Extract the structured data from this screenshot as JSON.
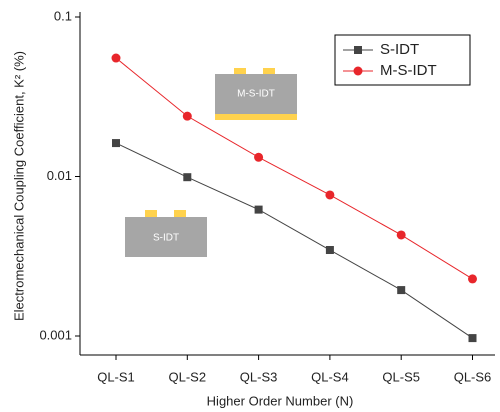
{
  "chart_data": {
    "type": "line",
    "x_label": "Higher Order Number (N)",
    "y_label": "Electromechanical Coupling Coefficient, K² (%)",
    "categories": [
      "QL-S1",
      "QL-S2",
      "QL-S3",
      "QL-S4",
      "QL-S5",
      "QL-S6"
    ],
    "series": [
      {
        "name": "S-IDT",
        "color": "#444444",
        "marker": "square",
        "values": [
          0.0162,
          0.0099,
          0.0062,
          0.00346,
          0.00194,
          0.00097
        ]
      },
      {
        "name": "M-S-IDT",
        "color": "#e8262b",
        "marker": "circle",
        "values": [
          0.0553,
          0.0239,
          0.0132,
          0.00766,
          0.0043,
          0.00228
        ]
      }
    ],
    "ylim": [
      0.00076,
      0.1
    ],
    "yticks": [
      0.001,
      0.01,
      0.1
    ],
    "ylog": true,
    "legend": "top-right",
    "annotations": [
      "M-S-IDT",
      "S-IDT"
    ]
  }
}
